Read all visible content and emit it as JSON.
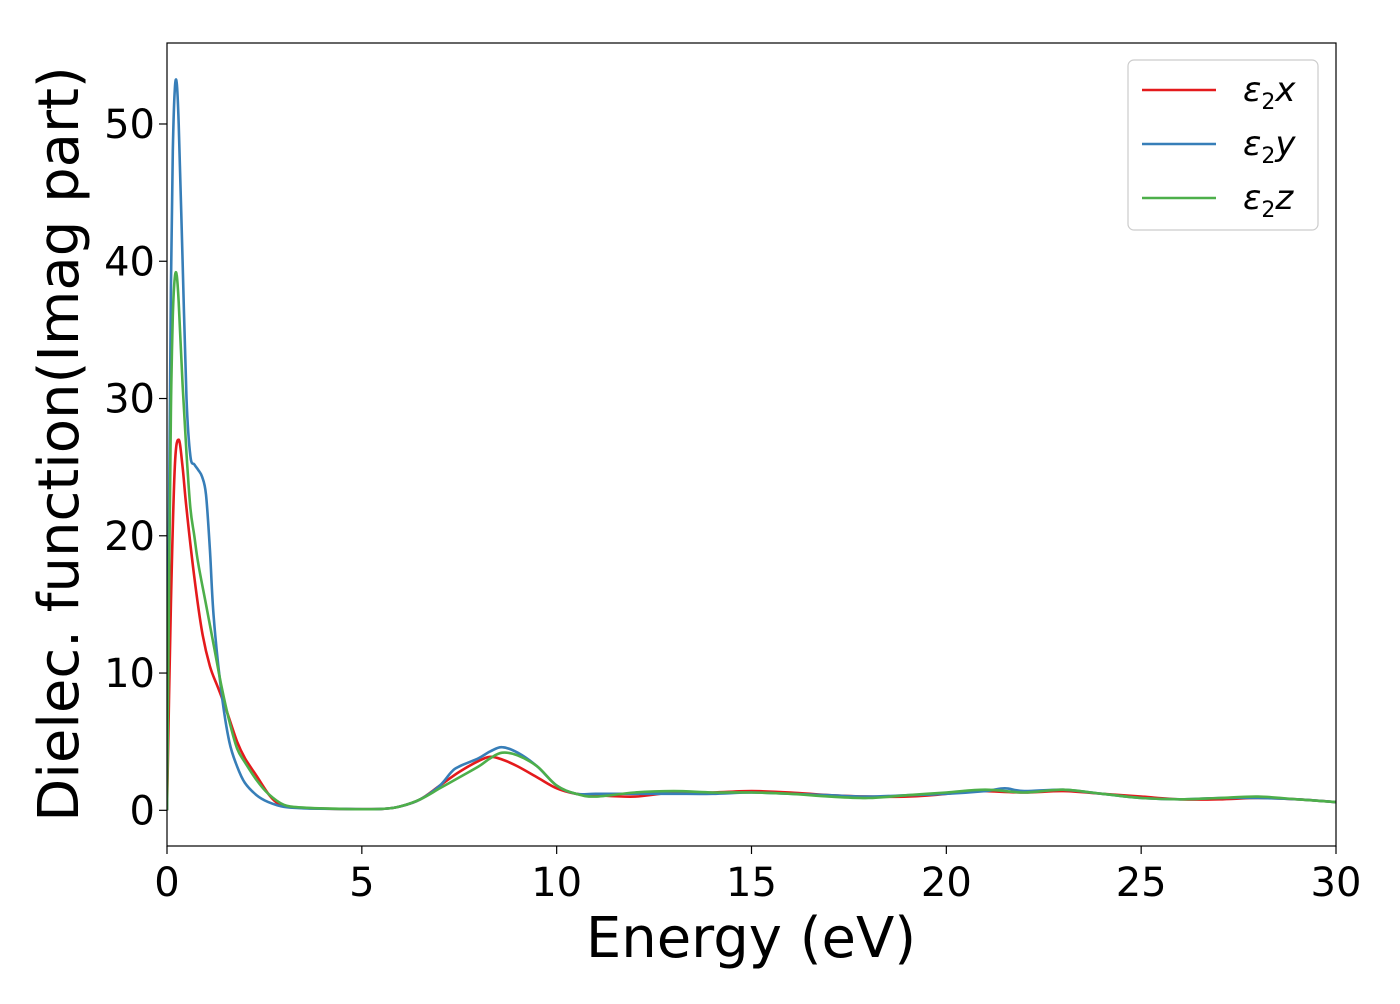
{
  "chart_data": {
    "type": "line",
    "title": "",
    "xlabel": "Energy (eV)",
    "ylabel": "Dielec. function(Imag part)",
    "xlim": [
      0,
      30
    ],
    "ylim": [
      -2.6,
      55.9
    ],
    "xticks": [
      0,
      5,
      10,
      15,
      20,
      25,
      30
    ],
    "yticks": [
      0,
      10,
      20,
      30,
      40,
      50
    ],
    "grid": false,
    "legend_position": "top-right",
    "series": [
      {
        "name": "ε₂x",
        "legend_base": "ε",
        "legend_sub": "2",
        "legend_var": "x",
        "color": "#e41a1c",
        "x": [
          0,
          0.1,
          0.2,
          0.3,
          0.4,
          0.5,
          0.7,
          0.9,
          1.1,
          1.3,
          1.5,
          1.8,
          2.0,
          2.3,
          2.6,
          2.8,
          3.0,
          3.3,
          3.7,
          4.5,
          5.5,
          6.0,
          6.5,
          7.0,
          7.5,
          8.0,
          8.3,
          8.6,
          9.0,
          9.5,
          10.0,
          10.5,
          11.0,
          12.0,
          13.0,
          14.0,
          15.0,
          16.0,
          17.0,
          18.0,
          19.0,
          20.0,
          20.5,
          21.0,
          22.0,
          23.0,
          24.0,
          25.0,
          26.0,
          27.0,
          28.0,
          29.0,
          30.0
        ],
        "y": [
          0,
          15,
          25,
          27,
          25,
          22,
          17,
          13,
          10.5,
          9,
          7.5,
          5,
          3.8,
          2.5,
          1.2,
          0.6,
          0.3,
          0.2,
          0.15,
          0.1,
          0.1,
          0.3,
          0.8,
          1.8,
          2.8,
          3.6,
          3.9,
          3.7,
          3.2,
          2.4,
          1.6,
          1.2,
          1.1,
          1.0,
          1.3,
          1.3,
          1.4,
          1.3,
          1.1,
          1.0,
          1.0,
          1.2,
          1.4,
          1.4,
          1.3,
          1.4,
          1.2,
          1.0,
          0.8,
          0.8,
          0.9,
          0.8,
          0.6
        ]
      },
      {
        "name": "ε₂y",
        "legend_base": "ε",
        "legend_sub": "2",
        "legend_var": "y",
        "color": "#377eb8",
        "x": [
          0,
          0.05,
          0.1,
          0.15,
          0.2,
          0.25,
          0.3,
          0.4,
          0.5,
          0.6,
          0.7,
          0.8,
          0.9,
          1.0,
          1.1,
          1.2,
          1.4,
          1.6,
          1.8,
          2.0,
          2.3,
          2.6,
          3.0,
          3.5,
          4.5,
          5.5,
          6.0,
          6.5,
          7.0,
          7.3,
          7.5,
          8.0,
          8.3,
          8.6,
          9.0,
          9.5,
          10.0,
          10.5,
          11.0,
          12.0,
          13.0,
          14.0,
          15.0,
          16.0,
          17.0,
          18.0,
          19.0,
          20.0,
          21.0,
          21.5,
          22.0,
          23.0,
          24.0,
          25.0,
          26.0,
          27.0,
          28.0,
          29.0,
          30.0
        ],
        "y": [
          0,
          20,
          38,
          48,
          52.5,
          53,
          50,
          40,
          30,
          25.8,
          25.2,
          24.8,
          24.3,
          23,
          19,
          14,
          8.5,
          5,
          3.2,
          2,
          1.1,
          0.6,
          0.25,
          0.15,
          0.1,
          0.1,
          0.3,
          0.8,
          1.8,
          2.8,
          3.2,
          3.8,
          4.3,
          4.6,
          4.2,
          3.2,
          1.8,
          1.2,
          1.2,
          1.2,
          1.2,
          1.2,
          1.3,
          1.2,
          1.1,
          1.0,
          1.1,
          1.2,
          1.4,
          1.6,
          1.4,
          1.5,
          1.2,
          0.9,
          0.8,
          0.9,
          0.9,
          0.8,
          0.6
        ]
      },
      {
        "name": "ε₂z",
        "legend_base": "ε",
        "legend_sub": "2",
        "legend_var": "z",
        "color": "#4daf4a",
        "x": [
          0,
          0.05,
          0.1,
          0.15,
          0.2,
          0.25,
          0.3,
          0.4,
          0.5,
          0.6,
          0.7,
          0.8,
          1.0,
          1.2,
          1.4,
          1.6,
          1.8,
          2.0,
          2.3,
          2.6,
          3.0,
          3.5,
          4.5,
          5.5,
          6.0,
          6.5,
          7.0,
          7.5,
          8.0,
          8.3,
          8.6,
          9.0,
          9.5,
          10.0,
          10.5,
          11.0,
          12.0,
          13.0,
          14.0,
          15.0,
          16.0,
          17.0,
          18.0,
          19.0,
          20.0,
          21.0,
          22.0,
          23.0,
          24.0,
          25.0,
          26.0,
          27.0,
          28.0,
          29.0,
          30.0
        ],
        "y": [
          0,
          15,
          29,
          36,
          38.8,
          39,
          37,
          31,
          26,
          22,
          20,
          18,
          15,
          12,
          9,
          6.5,
          4.5,
          3.5,
          2.2,
          1.2,
          0.4,
          0.2,
          0.1,
          0.1,
          0.3,
          0.8,
          1.6,
          2.4,
          3.2,
          3.8,
          4.2,
          4.0,
          3.2,
          1.8,
          1.2,
          1.0,
          1.3,
          1.4,
          1.3,
          1.3,
          1.2,
          1.0,
          0.9,
          1.1,
          1.3,
          1.5,
          1.3,
          1.5,
          1.2,
          0.9,
          0.8,
          0.9,
          1.0,
          0.8,
          0.6
        ]
      }
    ]
  }
}
